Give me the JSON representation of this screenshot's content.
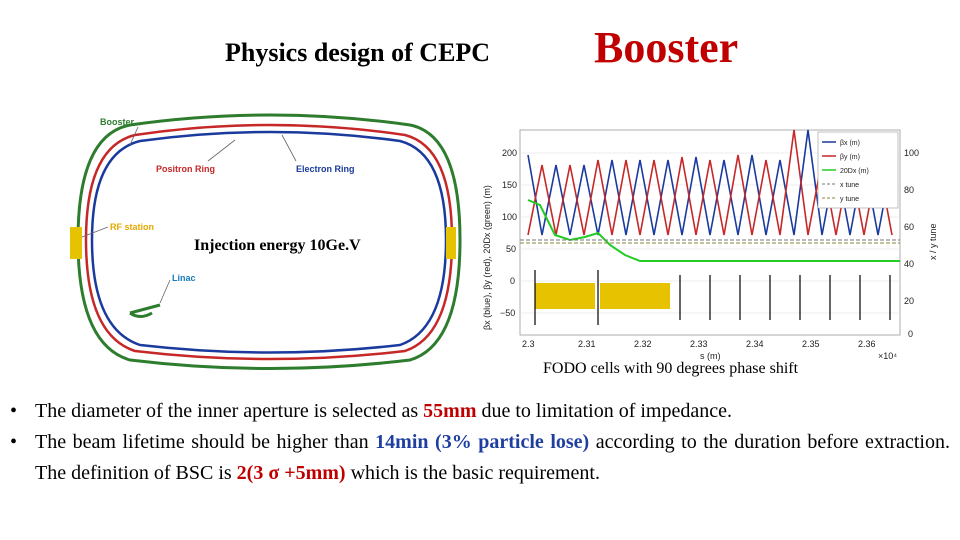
{
  "title": {
    "left": "Physics design of CEPC",
    "right": "Booster"
  },
  "ring_diagram": {
    "labels": {
      "booster": "Booster",
      "positron_ring": "Positron Ring",
      "electron_ring": "Electron Ring",
      "rf_station": "RF station",
      "linac": "Linac"
    },
    "colors": {
      "booster": "#2e7d2e",
      "positron": "#c62828",
      "electron": "#1a3a9e",
      "rf": "#e6c200"
    }
  },
  "injection_label": "Injection energy 10Ge.V",
  "plot": {
    "legend": [
      "βx (m)",
      "βy (m)",
      "20Dx (m)",
      "x tune",
      "y tune"
    ],
    "xlabel": "s (m)",
    "x_ticks": [
      "2.3",
      "2.31",
      "2.32",
      "2.33",
      "2.34",
      "2.35",
      "2.36"
    ],
    "x_exponent": "×10⁴",
    "y_ticks_left": [
      "200",
      "150",
      "100",
      "50",
      "0",
      "−50"
    ],
    "y_ticks_right": [
      "100",
      "80",
      "60",
      "40",
      "20",
      "0"
    ],
    "ylabel_left": "βx (blue), βy (red), 20Dx (green) (m)",
    "ylabel_right": "x / y tune"
  },
  "caption": "FODO cells with 90 degrees phase shift",
  "bullets": [
    {
      "segments": [
        {
          "text": "The diameter of the inner aperture is selected as ",
          "style": "normal"
        },
        {
          "text": "55mm",
          "style": "red"
        },
        {
          "text": " due to limitation of impedance.",
          "style": "normal"
        }
      ]
    },
    {
      "segments": [
        {
          "text": "The beam lifetime should be higher than ",
          "style": "normal"
        },
        {
          "text": "14min (3% particle lose)",
          "style": "blue"
        },
        {
          "text": " according to the duration before extraction. The definition of BSC is ",
          "style": "normal"
        },
        {
          "text": "2(3 σ +5mm)",
          "style": "red"
        },
        {
          "text": " which is the basic requirement.",
          "style": "normal"
        }
      ]
    }
  ]
}
